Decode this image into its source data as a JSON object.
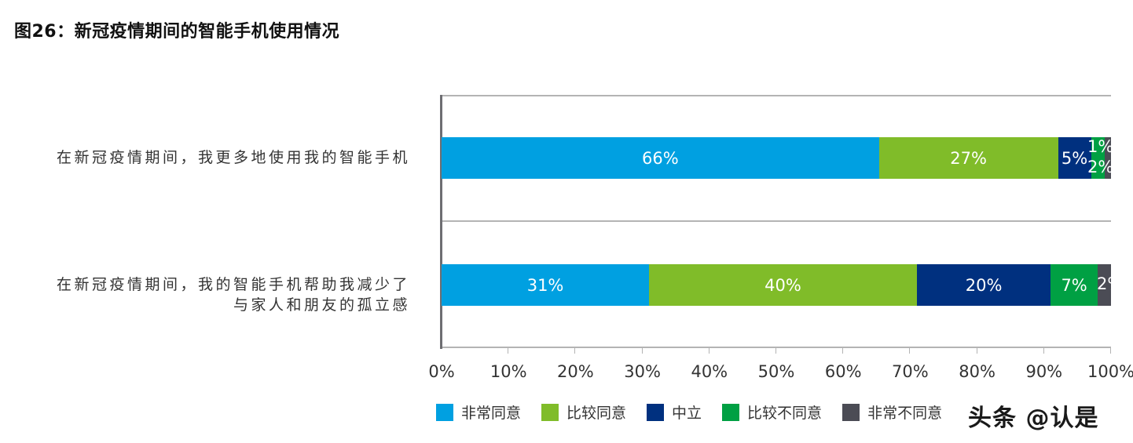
{
  "title": "图26：新冠疫情期间的智能手机使用情况",
  "chart_data": {
    "type": "bar",
    "orientation": "horizontal",
    "stacked": true,
    "title": "图26：新冠疫情期间的智能手机使用情况",
    "categories": [
      "在新冠疫情期间，我更多地使用我的智能手机",
      "在新冠疫情期间，我的智能手机帮助我减少了与家人和朋友的孤立感"
    ],
    "category_lines": [
      [
        "在新冠疫情期间，我更多地使用我的智能手机"
      ],
      [
        "在新冠疫情期间，我的智能手机帮助我减少了",
        "与家人和朋友的孤立感"
      ]
    ],
    "series": [
      {
        "name": "非常同意",
        "color": "#00a0e1",
        "values": [
          66,
          31
        ],
        "labels": [
          "66%",
          "31%"
        ]
      },
      {
        "name": "比较同意",
        "color": "#80bc29",
        "values": [
          27,
          40
        ],
        "labels": [
          "27%",
          "40%"
        ]
      },
      {
        "name": "中立",
        "color": "#00307f",
        "values": [
          5,
          20
        ],
        "labels": [
          "5%",
          "20%"
        ]
      },
      {
        "name": "比较不同意",
        "color": "#00a043",
        "values": [
          2,
          7
        ],
        "labels": [
          "2%",
          "7%"
        ]
      },
      {
        "name": "非常不同意",
        "color": "#4b4c55",
        "values": [
          1,
          2
        ],
        "labels": [
          "1%",
          "2%"
        ]
      }
    ],
    "xlabel": "",
    "ylabel": "",
    "xlim": [
      0,
      100
    ],
    "x_ticks": [
      "0%",
      "10%",
      "20%",
      "30%",
      "40%",
      "50%",
      "60%",
      "70%",
      "80%",
      "90%",
      "100%"
    ],
    "grid": true,
    "legend_position": "bottom"
  },
  "legend": [
    {
      "label": "非常同意",
      "color": "#00a0e1"
    },
    {
      "label": "比较同意",
      "color": "#80bc29"
    },
    {
      "label": "中立",
      "color": "#00307f"
    },
    {
      "label": "比较不同意",
      "color": "#00a043"
    },
    {
      "label": "非常不同意",
      "color": "#4b4c55"
    }
  ],
  "watermark": "头条 @认是"
}
